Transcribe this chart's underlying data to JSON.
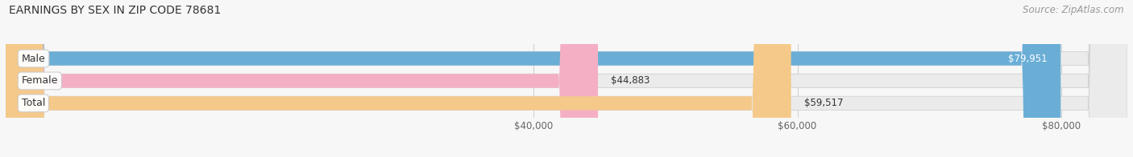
{
  "title": "EARNINGS BY SEX IN ZIP CODE 78681",
  "source": "Source: ZipAtlas.com",
  "categories": [
    "Male",
    "Female",
    "Total"
  ],
  "values": [
    79951,
    44883,
    59517
  ],
  "bar_colors": [
    "#6aaed6",
    "#f4afc4",
    "#f5c98a"
  ],
  "bar_labels": [
    "$79,951",
    "$44,883",
    "$59,517"
  ],
  "x_min": 0,
  "x_max": 85000,
  "tick_values": [
    40000,
    60000,
    80000
  ],
  "tick_labels": [
    "$40,000",
    "$60,000",
    "$80,000"
  ],
  "bg_color": "#f7f7f7",
  "bar_bg_color": "#ebebeb",
  "title_fontsize": 10,
  "source_fontsize": 8.5,
  "bar_height": 0.62,
  "fig_width": 14.06,
  "fig_height": 1.96
}
